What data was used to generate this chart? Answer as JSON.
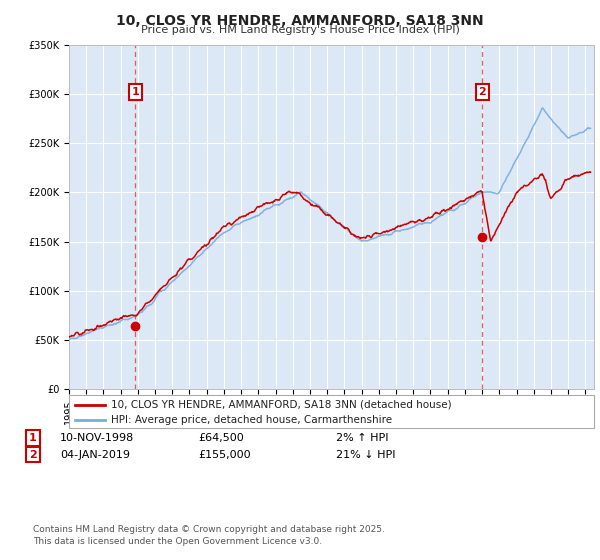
{
  "title": "10, CLOS YR HENDRE, AMMANFORD, SA18 3NN",
  "subtitle": "Price paid vs. HM Land Registry's House Price Index (HPI)",
  "legend_line1": "10, CLOS YR HENDRE, AMMANFORD, SA18 3NN (detached house)",
  "legend_line2": "HPI: Average price, detached house, Carmarthenshire",
  "footnote": "Contains HM Land Registry data © Crown copyright and database right 2025.\nThis data is licensed under the Open Government Licence v3.0.",
  "marker1_label": "1",
  "marker1_date": "10-NOV-1998",
  "marker1_price": "£64,500",
  "marker1_hpi": "2% ↑ HPI",
  "marker1_year": 1998.86,
  "marker1_value": 64500,
  "marker2_label": "2",
  "marker2_date": "04-JAN-2019",
  "marker2_price": "£155,000",
  "marker2_hpi": "21% ↓ HPI",
  "marker2_year": 2019.01,
  "marker2_value": 155000,
  "ylim": [
    0,
    350000
  ],
  "xlim_start": 1995.0,
  "xlim_end": 2025.5,
  "fig_bg_color": "#ffffff",
  "plot_bg_color": "#dce8f5",
  "grid_color": "#ffffff",
  "red_color": "#cc0000",
  "blue_color": "#7aacdc",
  "dashed_line_color": "#dd4444",
  "title_fontsize": 10,
  "subtitle_fontsize": 8,
  "tick_fontsize": 7,
  "ylabel_fontsize": 8,
  "legend_fontsize": 7.5,
  "table_fontsize": 8,
  "footnote_fontsize": 6.5
}
